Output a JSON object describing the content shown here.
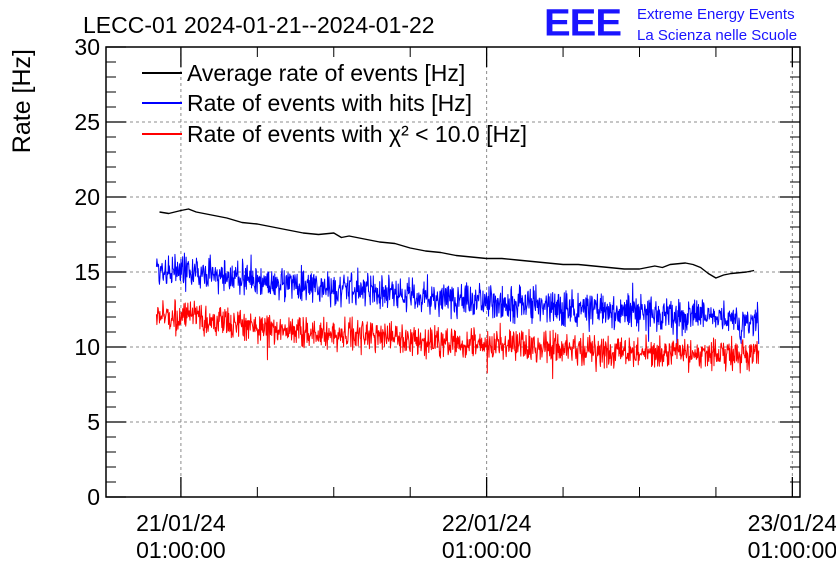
{
  "logo": {
    "mark": "EEE",
    "line1": "Extreme Energy Events",
    "line2": "La Scienza nelle Scuole",
    "color": "#1a14ff"
  },
  "chart_data": {
    "type": "line",
    "title": "LECC-01 2024-01-21--2024-01-22",
    "ylabel": "Rate [Hz]",
    "xlabel": "",
    "ylim": [
      0,
      30
    ],
    "xlim_hours": [
      -4.9,
      40.5
    ],
    "yticks": [
      0,
      5,
      10,
      15,
      20,
      25,
      30
    ],
    "xticks": [
      {
        "hours": 0,
        "line1": "21/01/24",
        "line2": "01:00:00"
      },
      {
        "hours": 20,
        "line1": "22/01/24",
        "line2": "01:00:00"
      },
      {
        "hours": 40,
        "line1": "23/01/24",
        "line2": "01:00:00"
      }
    ],
    "grid": true,
    "legend_position": "top-left",
    "series": [
      {
        "name": "Average rate of events [Hz]",
        "color": "#000000",
        "noise": 0,
        "x_hours": [
          -1.4,
          -0.8,
          0,
          0.5,
          1,
          2,
          3,
          4,
          5,
          6,
          7,
          8,
          9,
          10,
          10.5,
          11,
          12,
          13,
          14,
          15,
          16,
          17,
          18,
          19,
          20,
          21,
          22,
          23,
          24,
          25,
          26,
          27,
          28,
          29,
          30,
          31,
          31.5,
          32,
          33,
          33.5,
          34,
          34.5,
          35,
          35.5,
          36,
          37,
          37.5
        ],
        "values": [
          19.0,
          18.9,
          19.1,
          19.2,
          19.0,
          18.8,
          18.6,
          18.3,
          18.2,
          18.0,
          17.8,
          17.6,
          17.5,
          17.6,
          17.3,
          17.4,
          17.2,
          17.0,
          16.9,
          16.6,
          16.4,
          16.3,
          16.1,
          16.0,
          15.9,
          15.9,
          15.8,
          15.7,
          15.6,
          15.5,
          15.5,
          15.4,
          15.3,
          15.2,
          15.2,
          15.4,
          15.3,
          15.5,
          15.6,
          15.5,
          15.3,
          14.9,
          14.6,
          14.8,
          14.9,
          15.0,
          15.1
        ]
      },
      {
        "name": "Rate of events with hits [Hz]",
        "color": "#0000ff",
        "noise": 0.55,
        "x_hours": [
          -1.6,
          0,
          2,
          4,
          6,
          8,
          10,
          12,
          14,
          16,
          18,
          20,
          22,
          24,
          26,
          28,
          30,
          32,
          34,
          36,
          37.8
        ],
        "values": [
          15.2,
          15.1,
          14.8,
          14.6,
          14.3,
          14.0,
          13.9,
          13.8,
          13.6,
          13.3,
          13.2,
          13.0,
          12.9,
          12.7,
          12.5,
          12.4,
          12.3,
          12.2,
          12.1,
          11.8,
          11.7
        ]
      },
      {
        "name": "Rate of events with χ² < 10.0 [Hz]",
        "color": "#ff0000",
        "noise": 0.5,
        "x_hours": [
          -1.6,
          0,
          2,
          4,
          6,
          8,
          10,
          12,
          14,
          16,
          18,
          20,
          22,
          24,
          26,
          28,
          30,
          32,
          34,
          36,
          37.8
        ],
        "values": [
          12.1,
          12.0,
          11.7,
          11.5,
          11.2,
          11.0,
          10.9,
          10.8,
          10.6,
          10.4,
          10.3,
          10.1,
          10.0,
          9.9,
          9.8,
          9.7,
          9.6,
          9.6,
          9.5,
          9.5,
          9.4
        ]
      }
    ]
  }
}
